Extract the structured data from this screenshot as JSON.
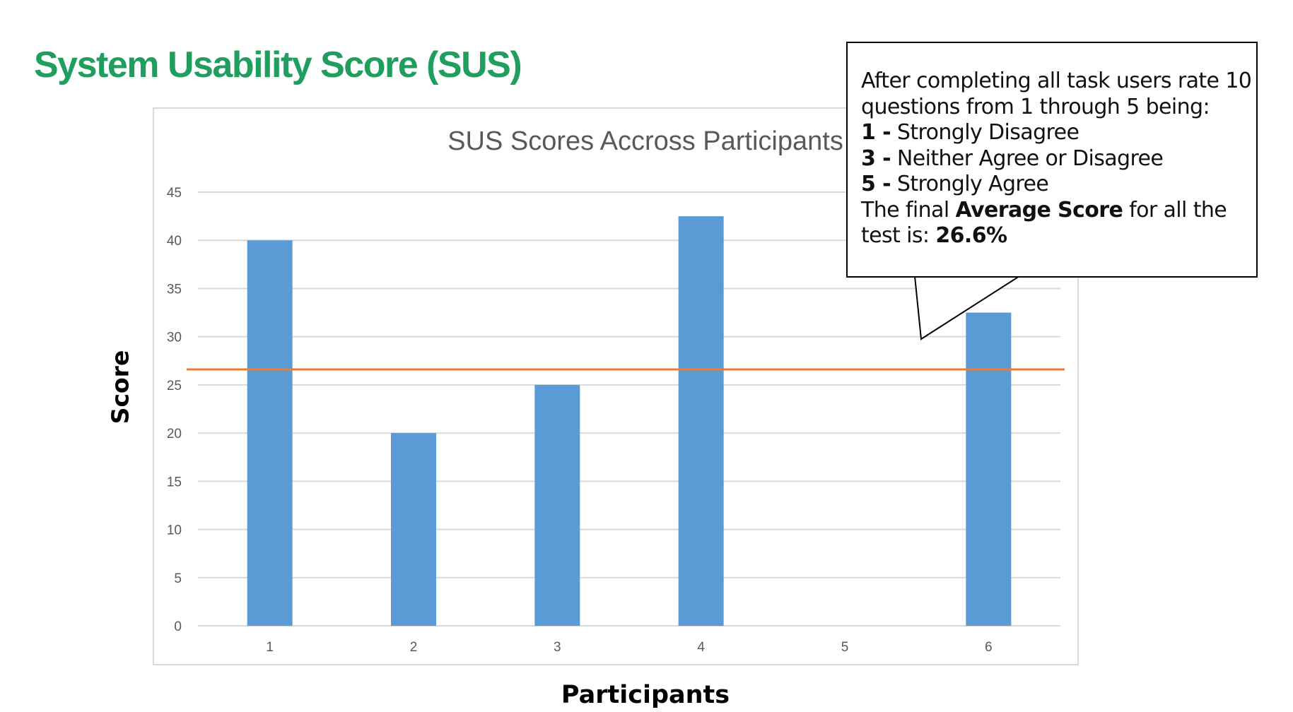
{
  "slide": {
    "title": "System Usability Score (SUS)"
  },
  "axis_labels": {
    "y": "Score",
    "x": "Participants"
  },
  "callout": {
    "intro_line1": "After completing all task users rate 10",
    "intro_line2": "questions from 1 through 5 being:",
    "scale": [
      {
        "num": "1 -",
        "text": "Strongly Disagree"
      },
      {
        "num": "3 -",
        "text": "Neither Agree or Disagree"
      },
      {
        "num": "5 -",
        "text": "Strongly Agree"
      }
    ],
    "final_prefix": "The final",
    "final_bold": "Average Score",
    "final_suffix": "for all the",
    "final_line2_prefix": "test is:",
    "final_value": "26.6%"
  },
  "chart_data": {
    "type": "bar",
    "title": "SUS Scores Accross Participants",
    "categories": [
      "1",
      "2",
      "3",
      "4",
      "5",
      "6"
    ],
    "values": [
      40,
      20,
      25,
      42.5,
      0,
      32.5
    ],
    "reference_line": 26.6,
    "xlabel": "Participants",
    "ylabel": "Score",
    "ylim": [
      0,
      45
    ],
    "yticks": [
      0,
      5,
      10,
      15,
      20,
      25,
      30,
      35,
      40,
      45
    ],
    "grid": true,
    "colors": {
      "bar": "#5b9bd5",
      "reference": "#ed7d31",
      "grid": "#d9d9d9",
      "tick_text": "#595959",
      "title_text": "#595959"
    }
  }
}
